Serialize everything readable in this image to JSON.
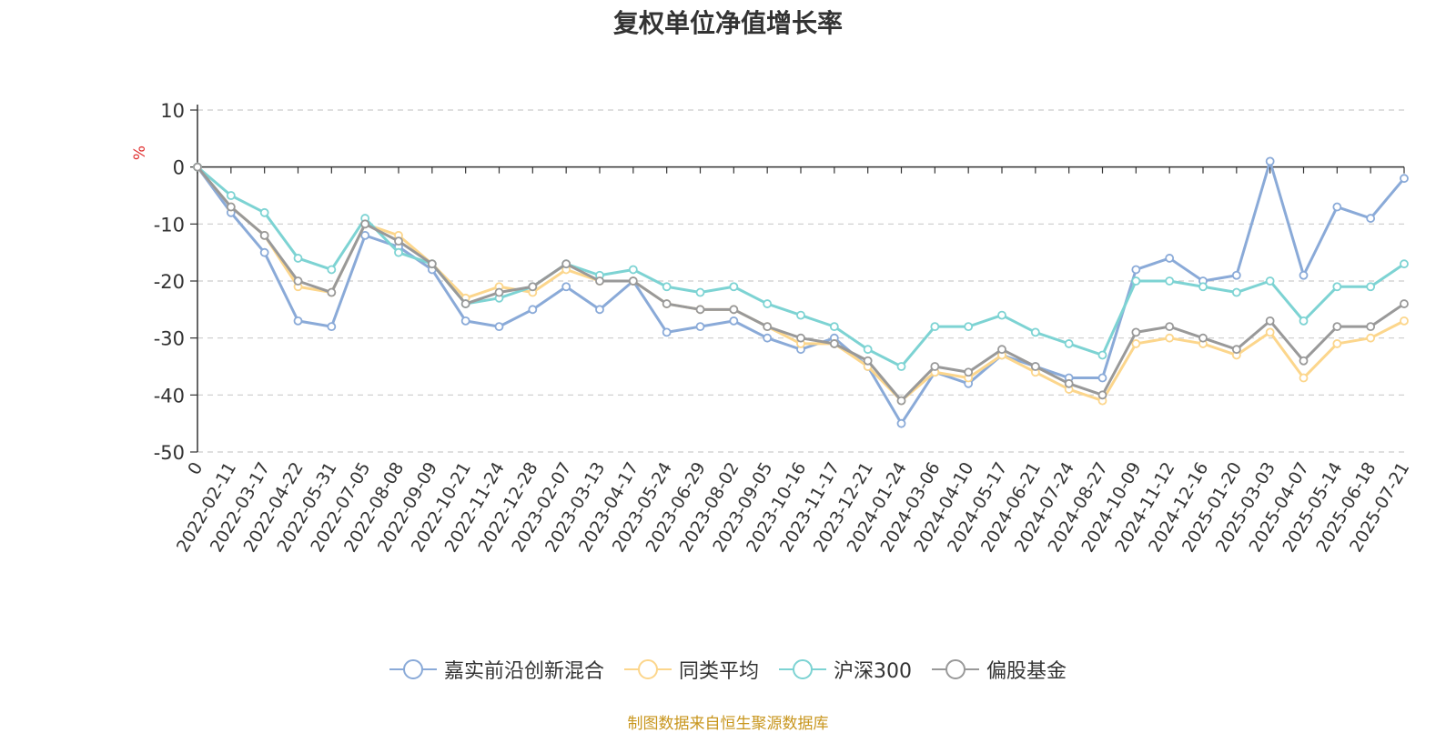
{
  "chart_data": {
    "type": "line",
    "title": "复权单位净值增长率",
    "ylabel": "%",
    "ylim": [
      -50,
      10
    ],
    "yticks": [
      10,
      0,
      -10,
      -20,
      -30,
      -40,
      -50
    ],
    "grid": true,
    "legend_position": "bottom",
    "x_tick_labels": [
      "0",
      "2022-02-11",
      "2022-03-17",
      "2022-04-22",
      "2022-05-31",
      "2022-07-05",
      "2022-08-08",
      "2022-09-09",
      "2022-10-21",
      "2022-11-24",
      "2022-12-28",
      "2023-02-07",
      "2023-03-13",
      "2023-04-17",
      "2023-05-24",
      "2023-06-29",
      "2023-08-02",
      "2023-09-05",
      "2023-10-16",
      "2023-11-17",
      "2023-12-21",
      "2024-01-24",
      "2024-03-06",
      "2024-04-10",
      "2024-05-17",
      "2024-06-21",
      "2024-07-24",
      "2024-08-27",
      "2024-10-09",
      "2024-11-12",
      "2024-12-16",
      "2025-01-20",
      "2025-03-03",
      "2025-04-07",
      "2025-05-14",
      "2025-06-18",
      "2025-07-21"
    ],
    "series": [
      {
        "name": "嘉实前沿创新混合",
        "color": "#8aaad8",
        "values": [
          0,
          -8,
          -15,
          -27,
          -28,
          -12,
          -14,
          -18,
          -27,
          -28,
          -25,
          -21,
          -25,
          -20,
          -29,
          -28,
          -27,
          -30,
          -32,
          -30,
          -35,
          -45,
          -36,
          -38,
          -33,
          -35,
          -37,
          -37,
          -18,
          -16,
          -20,
          -19,
          1,
          -19,
          -7,
          -9,
          -2
        ]
      },
      {
        "name": "同类平均",
        "color": "#fcd68c",
        "values": [
          0,
          -7,
          -12,
          -21,
          -22,
          -10,
          -12,
          -17,
          -23,
          -21,
          -22,
          -18,
          -20,
          -20,
          -24,
          -25,
          -25,
          -28,
          -31,
          -31,
          -35,
          -41,
          -36,
          -37,
          -33,
          -36,
          -39,
          -41,
          -31,
          -30,
          -31,
          -33,
          -29,
          -37,
          -31,
          -30,
          -27
        ]
      },
      {
        "name": "沪深300",
        "color": "#7dd3d3",
        "values": [
          0,
          -5,
          -8,
          -16,
          -18,
          -9,
          -15,
          -17,
          -24,
          -23,
          -21,
          -17,
          -19,
          -18,
          -21,
          -22,
          -21,
          -24,
          -26,
          -28,
          -32,
          -35,
          -28,
          -28,
          -26,
          -29,
          -31,
          -33,
          -20,
          -20,
          -21,
          -22,
          -20,
          -27,
          -21,
          -21,
          -17
        ]
      },
      {
        "name": "偏股基金",
        "color": "#999999",
        "values": [
          0,
          -7,
          -12,
          -20,
          -22,
          -10,
          -13,
          -17,
          -24,
          -22,
          -21,
          -17,
          -20,
          -20,
          -24,
          -25,
          -25,
          -28,
          -30,
          -31,
          -34,
          -41,
          -35,
          -36,
          -32,
          -35,
          -38,
          -40,
          -29,
          -28,
          -30,
          -32,
          -27,
          -34,
          -28,
          -28,
          -24
        ]
      }
    ]
  },
  "source_note": "制图数据来自恒生聚源数据库"
}
